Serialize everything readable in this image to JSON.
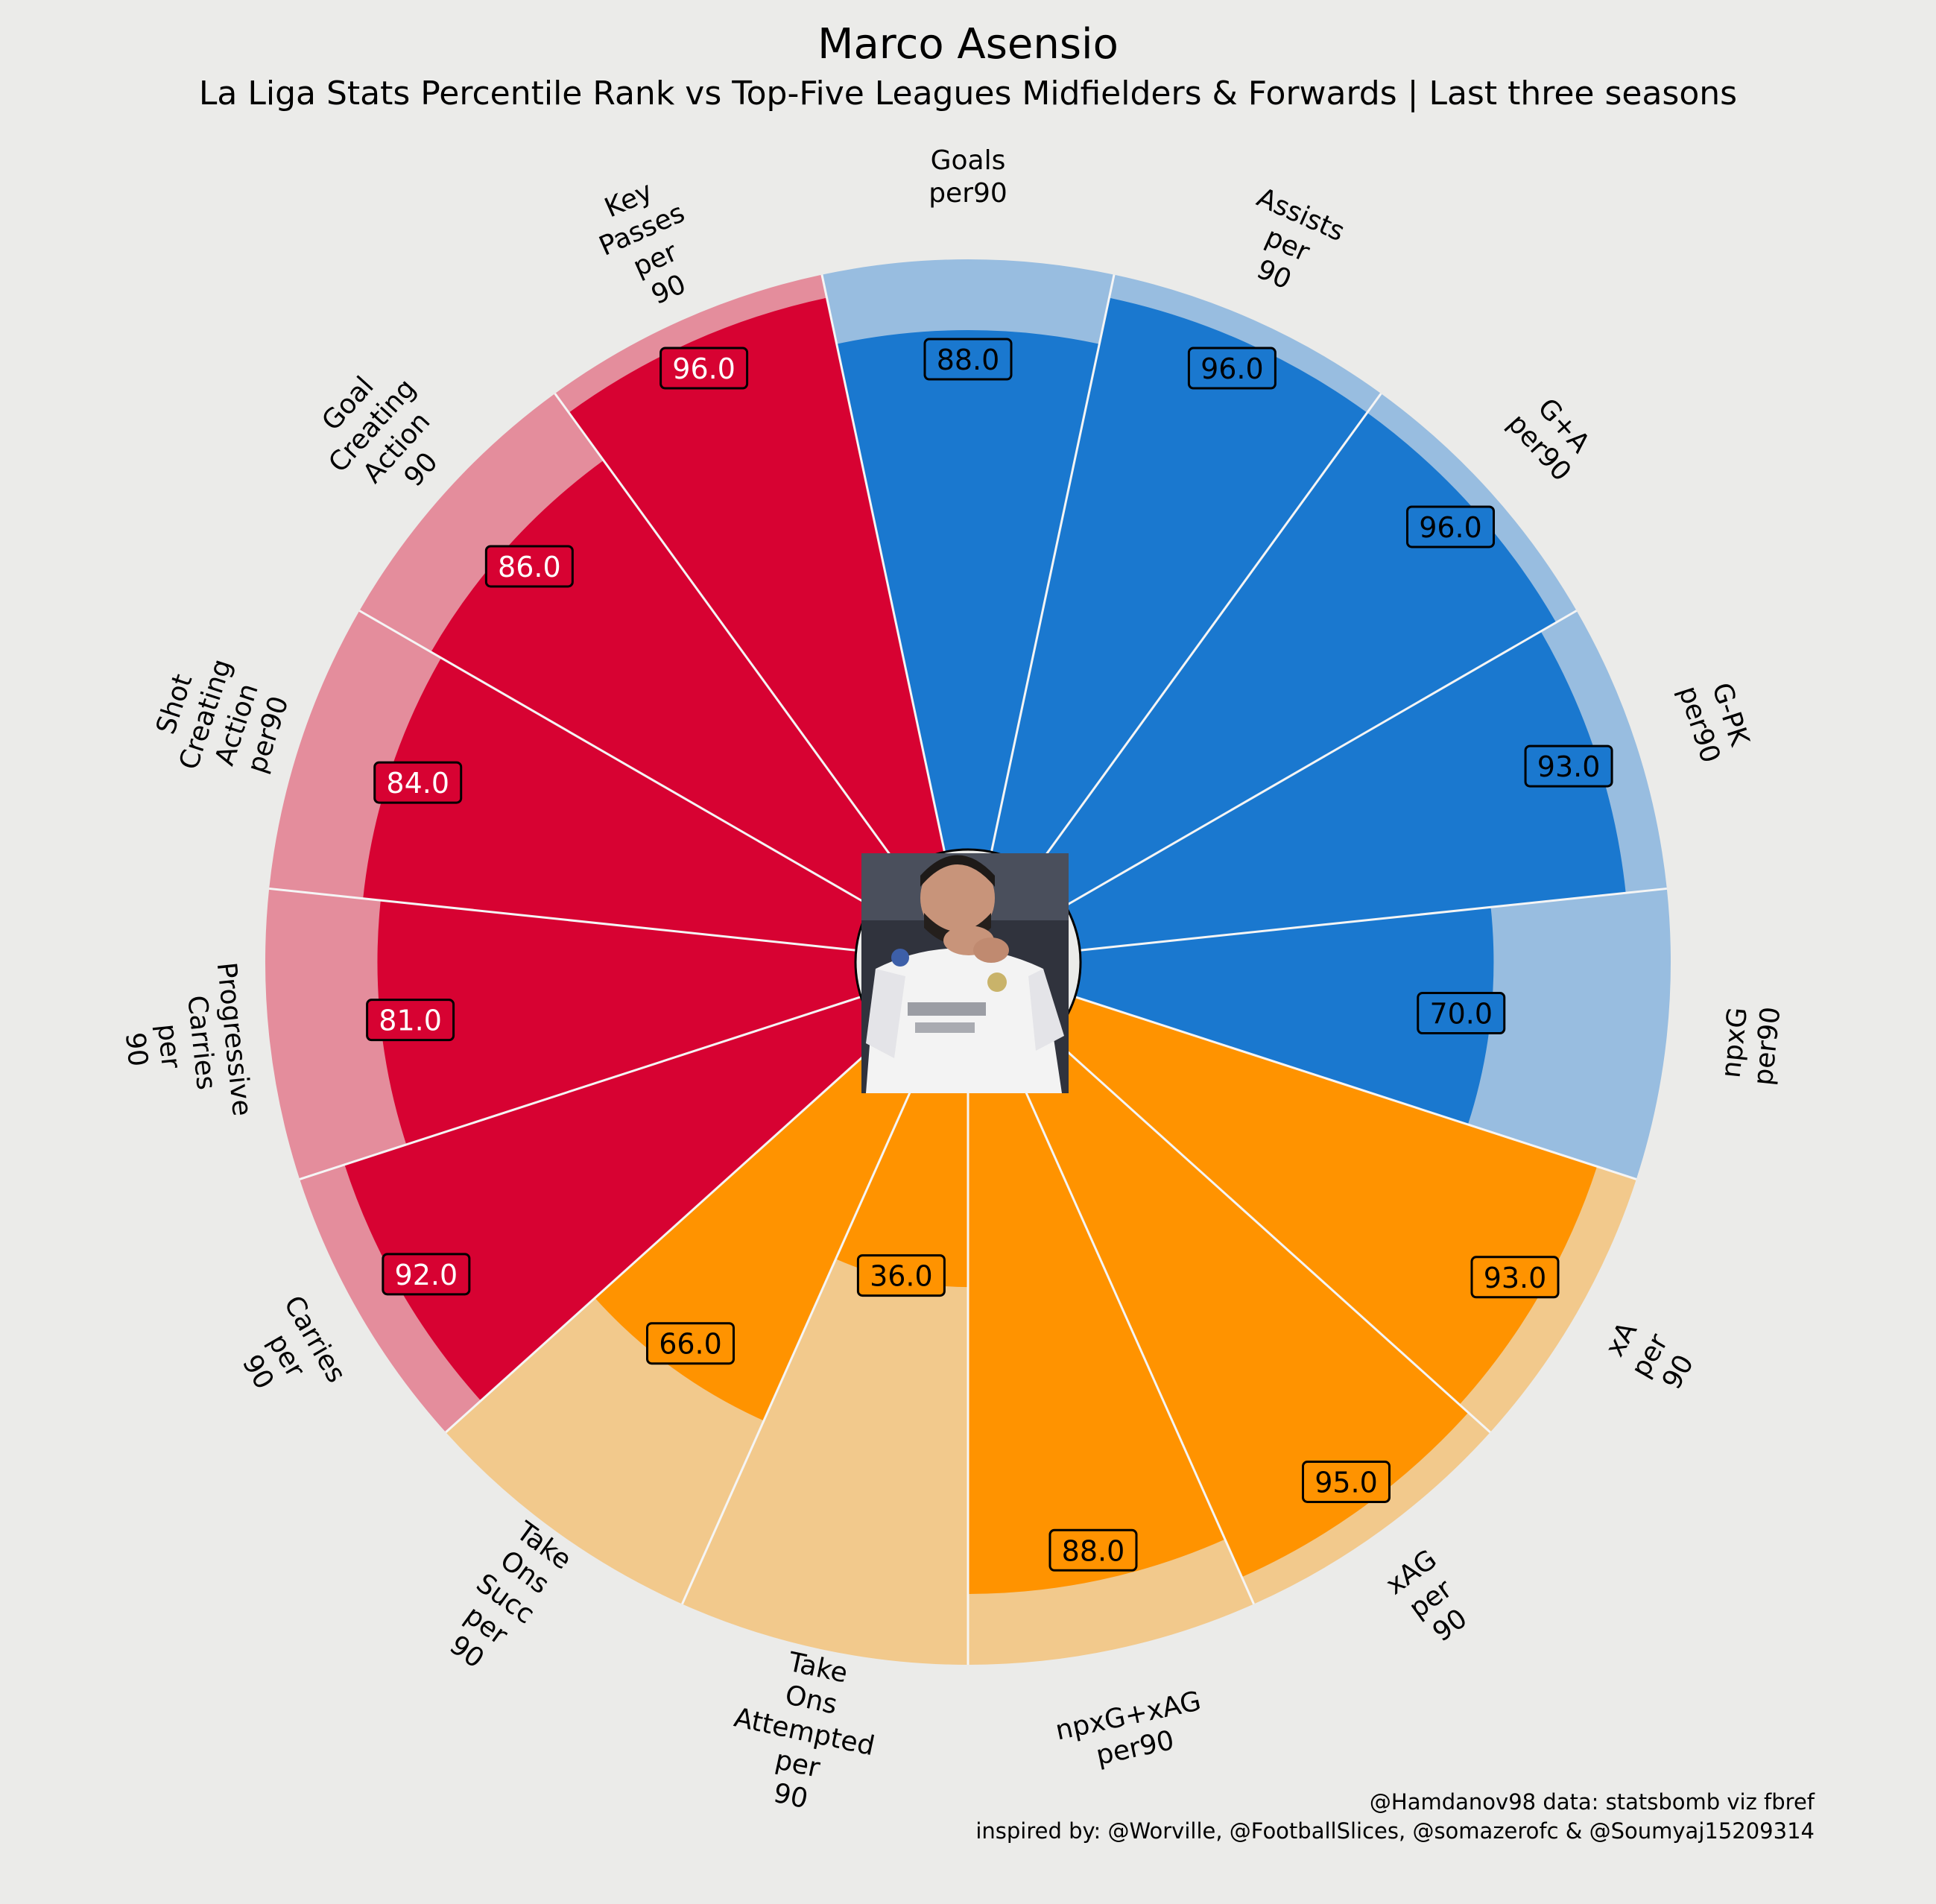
{
  "header": {
    "title": "Marco Asensio",
    "subtitle": "La Liga Stats Percentile Rank vs Top-Five Leagues Midfielders & Forwards | Last three seasons"
  },
  "credits": {
    "line1": "@Hamdanov98 data: statsbomb viz fbref",
    "line2": "inspired by: @Worville, @FootballSlices, @somazerofc & @Soumyaj15209314"
  },
  "photo": {
    "alt": "Marco Asensio celebrating in Real Madrid kit"
  },
  "colors": {
    "background": "#ebebe9",
    "attacking": "#1a78cf",
    "attacking_light": "#98bde0",
    "creating": "#d70232",
    "creating_light": "#e48d9c",
    "progression": "#ff9300",
    "progression_light": "#f2c98c",
    "separator": "#f5f5f5"
  },
  "chart_data": {
    "type": "polar-bar",
    "title": "Marco Asensio",
    "rlim": [
      0,
      100
    ],
    "categories": [
      "Goals per90",
      "Assists per 90",
      "G+A per90",
      "G-PK per90",
      "npxG per90",
      "xA per 90",
      "xAG per 90",
      "npxG+xAG per90",
      "Take Ons Attempted per 90",
      "Take Ons Succ per 90",
      "Carries per 90",
      "Progressive Carries per 90",
      "Shot Creating Action per90",
      "Goal Creating Action 90",
      "Key Passes per 90"
    ],
    "display_labels": [
      [
        "Goals",
        "per90"
      ],
      [
        "Assists",
        "per",
        "90"
      ],
      [
        "G+A",
        "per90"
      ],
      [
        "G-PK",
        "per90"
      ],
      [
        "npxG",
        "per90"
      ],
      [
        "xA",
        "per",
        "90"
      ],
      [
        "xAG",
        "per",
        "90"
      ],
      [
        "npxG+xAG",
        "per90"
      ],
      [
        "Take",
        "Ons",
        "Attempted",
        "per",
        "90"
      ],
      [
        "Take",
        "Ons",
        "Succ",
        "per",
        "90"
      ],
      [
        "Carries",
        "per",
        "90"
      ],
      [
        "Progressive",
        "Carries",
        "per",
        "90"
      ],
      [
        "Shot",
        "Creating",
        "Action",
        "per90"
      ],
      [
        "Goal",
        "Creating",
        "Action",
        "90"
      ],
      [
        "Key",
        "Passes",
        "per",
        "90"
      ]
    ],
    "values": [
      88,
      96,
      96,
      93,
      70,
      93,
      95,
      88,
      36,
      66,
      92,
      81,
      84,
      86,
      96
    ],
    "value_labels": [
      "88.0",
      "96.0",
      "96.0",
      "93.0",
      "70.0",
      "93.0",
      "95.0",
      "88.0",
      "36.0",
      "66.0",
      "92.0",
      "81.0",
      "84.0",
      "86.0",
      "96.0"
    ],
    "groups": [
      "attacking",
      "attacking",
      "attacking",
      "attacking",
      "attacking",
      "progression",
      "progression",
      "progression",
      "progression",
      "progression",
      "creating",
      "creating",
      "creating",
      "creating",
      "creating"
    ]
  }
}
